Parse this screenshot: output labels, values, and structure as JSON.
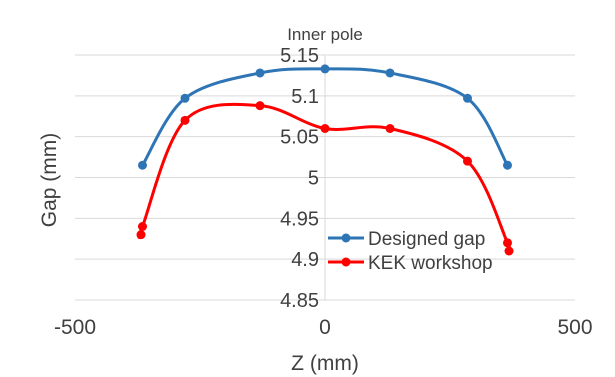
{
  "chart_data": {
    "type": "scatter",
    "title": "Inner pole",
    "xlabel": "Z (mm)",
    "ylabel": "Gap (mm)",
    "xlim": [
      -500,
      500
    ],
    "ylim": [
      4.85,
      5.15
    ],
    "x_ticks": [
      -500,
      0,
      500
    ],
    "x_tick_labels": [
      "-500",
      "0",
      "500"
    ],
    "y_ticks": [
      4.85,
      4.9,
      4.95,
      5,
      5.05,
      5.1,
      5.15
    ],
    "y_tick_labels": [
      "4.85",
      "4.9",
      "4.95",
      "5",
      "5.05",
      "5.1",
      "5.15"
    ],
    "grid": "horizontal",
    "smooth_lines": true,
    "legend_position": "lower-right",
    "series": [
      {
        "name": "Designed gap",
        "color": "#2e75b6",
        "x": [
          -365,
          -280,
          -130,
          0,
          130,
          285,
          365
        ],
        "y": [
          5.015,
          5.097,
          5.128,
          5.133,
          5.128,
          5.097,
          5.015
        ]
      },
      {
        "name": "KEK workshop",
        "color": "#ff0000",
        "x": [
          -368,
          -365,
          -280,
          -130,
          0,
          130,
          285,
          365,
          368
        ],
        "y": [
          4.93,
          4.94,
          5.07,
          5.088,
          5.06,
          5.06,
          5.02,
          4.92,
          4.91
        ]
      }
    ]
  }
}
